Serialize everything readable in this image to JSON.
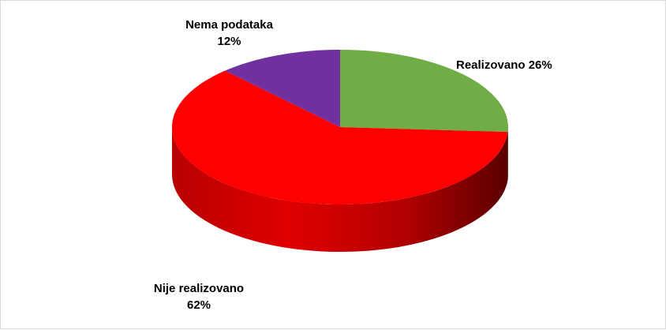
{
  "chart_data": {
    "type": "pie",
    "style": "3d",
    "slices": [
      {
        "label": "Realizovano",
        "value": 26,
        "display_value": "26%",
        "color": "#70ad47"
      },
      {
        "label": "Nije realizovano",
        "value": 62,
        "display_value": "62%",
        "color": "#ff0000"
      },
      {
        "label": "Nema podataka",
        "value": 12,
        "display_value": "12%",
        "color": "#7030a0"
      }
    ],
    "legend": "none",
    "data_labels": "outside"
  },
  "labels": {
    "realizovano": "Realizovano 26%",
    "nije_name": "Nije realizovano",
    "nije_value": "62%",
    "nema_name": "Nema podataka",
    "nema_value": "12%"
  }
}
